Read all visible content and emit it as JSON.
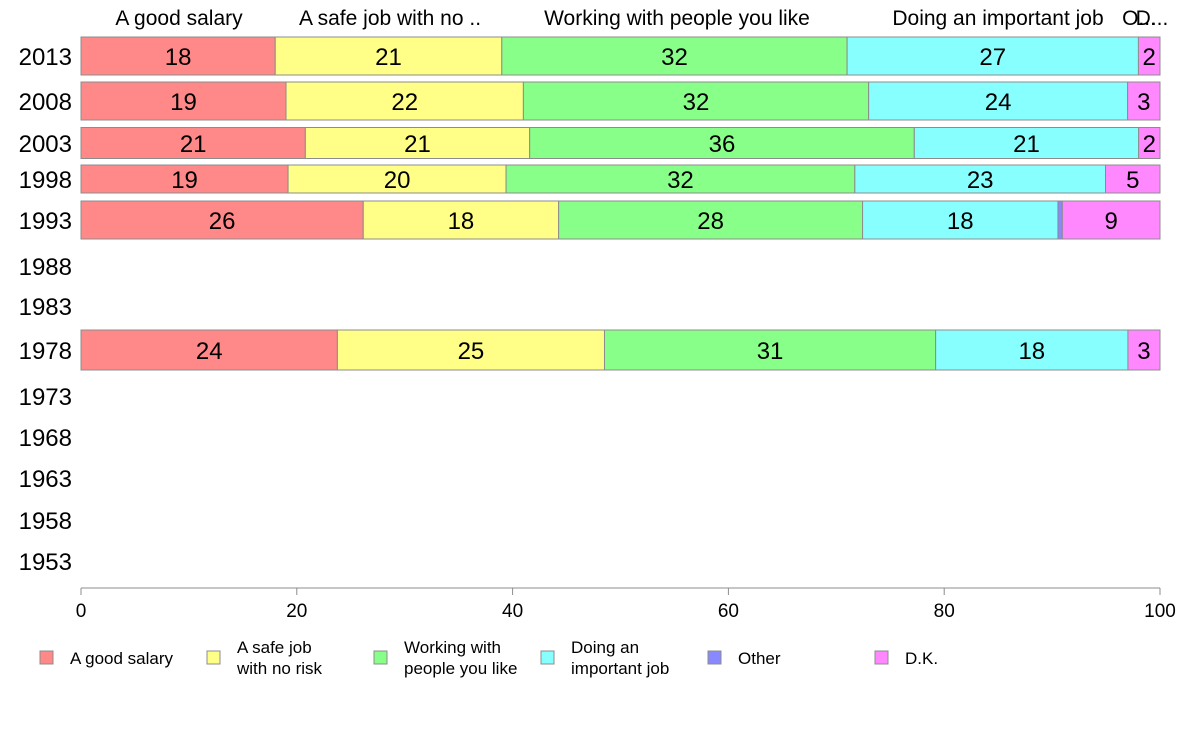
{
  "chart_data": {
    "type": "bar",
    "orientation": "horizontal",
    "stacked": true,
    "title": "",
    "xlabel": "",
    "ylabel": "",
    "xlim": [
      0,
      100
    ],
    "x_ticks": [
      0,
      20,
      40,
      60,
      80,
      100
    ],
    "column_headers": [
      "A good salary",
      "A safe job with no ..",
      "Working with people you like",
      "Doing an important job",
      "O...",
      "D..."
    ],
    "categories": [
      "2013",
      "2008",
      "2003",
      "1998",
      "1993",
      "1988",
      "1983",
      "1978",
      "1973",
      "1968",
      "1963",
      "1958",
      "1953"
    ],
    "series": [
      {
        "name": "A good salary",
        "legend": [
          "A good salary"
        ],
        "color": "#FF8888",
        "values": [
          18,
          19,
          21,
          19,
          26,
          null,
          null,
          24,
          null,
          null,
          null,
          null,
          null
        ]
      },
      {
        "name": "A safe job with no risk",
        "legend": [
          "A safe job",
          "with no risk"
        ],
        "color": "#FFFF88",
        "values": [
          21,
          22,
          21,
          20,
          18,
          null,
          null,
          25,
          null,
          null,
          null,
          null,
          null
        ]
      },
      {
        "name": "Working with people you like",
        "legend": [
          "Working with",
          "people you like"
        ],
        "color": "#88FF88",
        "values": [
          32,
          32,
          36,
          32,
          28,
          null,
          null,
          31,
          null,
          null,
          null,
          null,
          null
        ]
      },
      {
        "name": "Doing an important job",
        "legend": [
          "Doing an",
          "important job"
        ],
        "color": "#88FFFF",
        "values": [
          27,
          24,
          21,
          23,
          18,
          null,
          null,
          18,
          null,
          null,
          null,
          null,
          null
        ]
      },
      {
        "name": "Other",
        "legend": [
          "Other"
        ],
        "color": "#8888FF",
        "values": [
          0,
          0,
          0,
          0,
          0.4,
          null,
          null,
          0,
          null,
          null,
          null,
          null,
          null
        ]
      },
      {
        "name": "D.K.",
        "legend": [
          "D.K."
        ],
        "color": "#FF88FF",
        "values": [
          2,
          3,
          2,
          5,
          9,
          null,
          null,
          3,
          null,
          null,
          null,
          null,
          null
        ]
      }
    ],
    "bar_labels": [
      [
        "18",
        "21",
        "32",
        "27",
        "",
        "2"
      ],
      [
        "19",
        "22",
        "32",
        "24",
        "",
        "3"
      ],
      [
        "21",
        "21",
        "36",
        "21",
        "",
        "2"
      ],
      [
        "19",
        "20",
        "32",
        "23",
        "",
        "5"
      ],
      [
        "26",
        "18",
        "28",
        "18",
        "",
        "9"
      ],
      null,
      null,
      [
        "24",
        "25",
        "31",
        "18",
        "",
        "3"
      ],
      null,
      null,
      null,
      null,
      null
    ],
    "grid": false,
    "legend_position": "bottom"
  }
}
